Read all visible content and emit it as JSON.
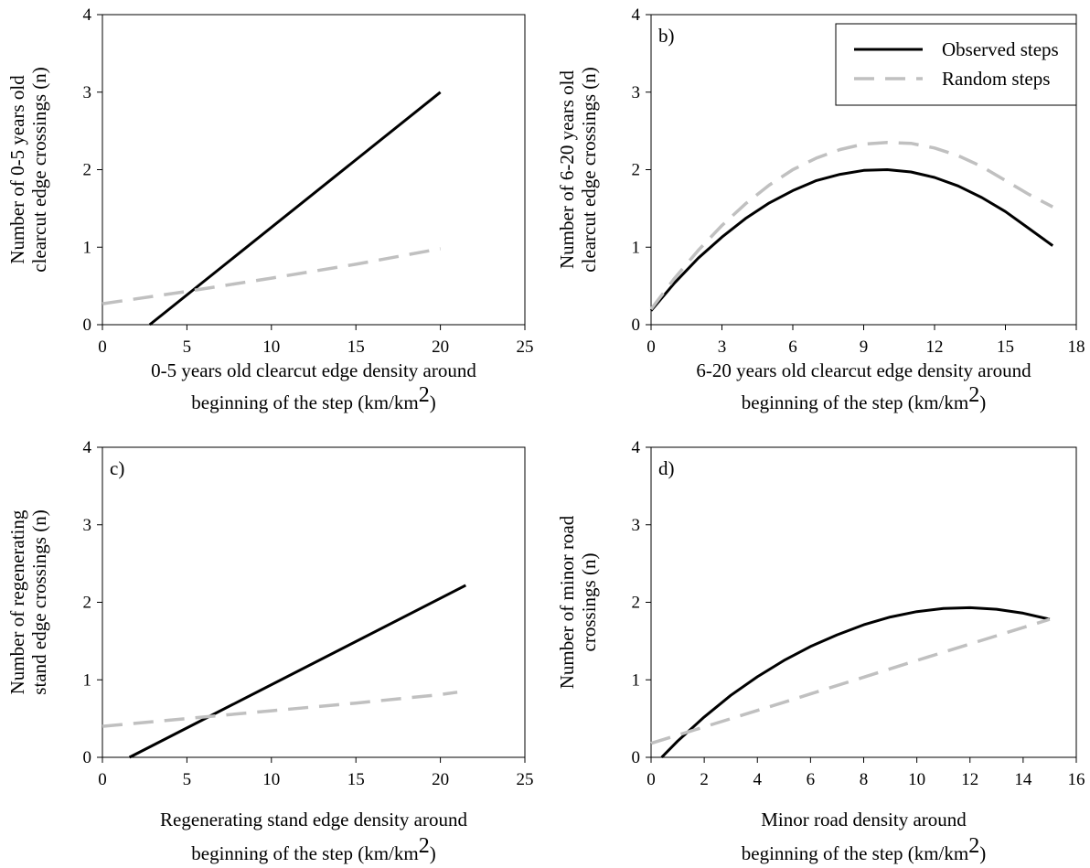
{
  "figure": {
    "legend": {
      "placement": "top-right of panel b",
      "items": [
        {
          "label": "Observed steps",
          "color": "#000000",
          "style": "solid"
        },
        {
          "label": "Random steps",
          "color": "#c0c0c0",
          "style": "dashed"
        }
      ]
    }
  },
  "chart_data": [
    {
      "type": "line",
      "panel_label": "",
      "ylabel": [
        "Number of 0-5 years old",
        "clearcut edge crossings (n)"
      ],
      "xlabel": [
        "0-5 years old clearcut edge density around",
        "beginning of the step (km/km2)"
      ],
      "xlim": [
        0,
        25
      ],
      "ylim": [
        0,
        4
      ],
      "xticks": [
        "0",
        "5",
        "10",
        "15",
        "20",
        "25"
      ],
      "yticks": [
        "0",
        "1",
        "2",
        "3",
        "4"
      ],
      "series": [
        {
          "name": "Observed steps",
          "color": "#000000",
          "dash": false,
          "x": [
            2.8,
            20
          ],
          "y": [
            0,
            3.0
          ]
        },
        {
          "name": "Random steps",
          "color": "#c0c0c0",
          "dash": true,
          "x": [
            0,
            5,
            10,
            15,
            20
          ],
          "y": [
            0.27,
            0.43,
            0.6,
            0.78,
            0.98
          ]
        }
      ]
    },
    {
      "type": "line",
      "panel_label": "b)",
      "ylabel": [
        "Number of 6-20 years old",
        "clearcut edge crossings (n)"
      ],
      "xlabel": [
        "6-20 years old clearcut edge density around",
        "beginning of the step (km/km2)"
      ],
      "xlim": [
        0,
        18
      ],
      "ylim": [
        0,
        4
      ],
      "xticks": [
        "0",
        "3",
        "6",
        "9",
        "12",
        "15",
        "18"
      ],
      "yticks": [
        "0",
        "1",
        "2",
        "3",
        "4"
      ],
      "series": [
        {
          "name": "Observed steps",
          "color": "#000000",
          "dash": false,
          "x": [
            0,
            1,
            2,
            3,
            4,
            5,
            6,
            7,
            8,
            9,
            10,
            11,
            12,
            13,
            14,
            15,
            16,
            17
          ],
          "y": [
            0.18,
            0.54,
            0.86,
            1.13,
            1.37,
            1.57,
            1.73,
            1.86,
            1.94,
            1.99,
            2.0,
            1.97,
            1.9,
            1.79,
            1.64,
            1.46,
            1.24,
            1.02
          ]
        },
        {
          "name": "Random steps",
          "color": "#c0c0c0",
          "dash": true,
          "x": [
            0,
            1,
            2,
            3,
            4,
            5,
            6,
            7,
            8,
            9,
            10,
            11,
            12,
            13,
            14,
            15,
            16,
            17
          ],
          "y": [
            0.2,
            0.6,
            0.96,
            1.28,
            1.56,
            1.8,
            2.0,
            2.15,
            2.26,
            2.33,
            2.35,
            2.34,
            2.28,
            2.18,
            2.04,
            1.86,
            1.68,
            1.52
          ]
        }
      ]
    },
    {
      "type": "line",
      "panel_label": "c)",
      "ylabel": [
        "Number of regenerating",
        "stand edge crossings (n)"
      ],
      "xlabel": [
        "Regenerating stand edge density around",
        "beginning of the step (km/km2)"
      ],
      "xlim": [
        0,
        25
      ],
      "ylim": [
        0,
        4
      ],
      "xticks": [
        "0",
        "5",
        "10",
        "15",
        "20",
        "25"
      ],
      "yticks": [
        "0",
        "1",
        "2",
        "3",
        "4"
      ],
      "series": [
        {
          "name": "Observed steps",
          "color": "#000000",
          "dash": false,
          "x": [
            1.6,
            21.5
          ],
          "y": [
            0,
            2.22
          ]
        },
        {
          "name": "Random steps",
          "color": "#c0c0c0",
          "dash": true,
          "x": [
            0,
            5,
            10,
            15,
            20,
            21
          ],
          "y": [
            0.4,
            0.5,
            0.6,
            0.7,
            0.81,
            0.84
          ]
        }
      ]
    },
    {
      "type": "line",
      "panel_label": "d)",
      "ylabel": [
        "Number of minor road",
        "crossings (n)"
      ],
      "xlabel": [
        "Minor road density around",
        "beginning of the step (km/km2)"
      ],
      "xlim": [
        0,
        16
      ],
      "ylim": [
        0,
        4
      ],
      "xticks": [
        "0",
        "2",
        "4",
        "6",
        "8",
        "10",
        "12",
        "14",
        "16"
      ],
      "yticks": [
        "0",
        "1",
        "2",
        "3",
        "4"
      ],
      "series": [
        {
          "name": "Observed steps",
          "color": "#000000",
          "dash": false,
          "x": [
            0.4,
            1,
            2,
            3,
            4,
            5,
            6,
            7,
            8,
            9,
            10,
            11,
            12,
            13,
            14,
            15
          ],
          "y": [
            0,
            0.21,
            0.52,
            0.8,
            1.04,
            1.25,
            1.43,
            1.58,
            1.71,
            1.81,
            1.88,
            1.92,
            1.93,
            1.91,
            1.86,
            1.78
          ]
        },
        {
          "name": "Random steps",
          "color": "#c0c0c0",
          "dash": true,
          "x": [
            0,
            5,
            10,
            15
          ],
          "y": [
            0.18,
            0.71,
            1.25,
            1.78
          ]
        }
      ]
    }
  ]
}
